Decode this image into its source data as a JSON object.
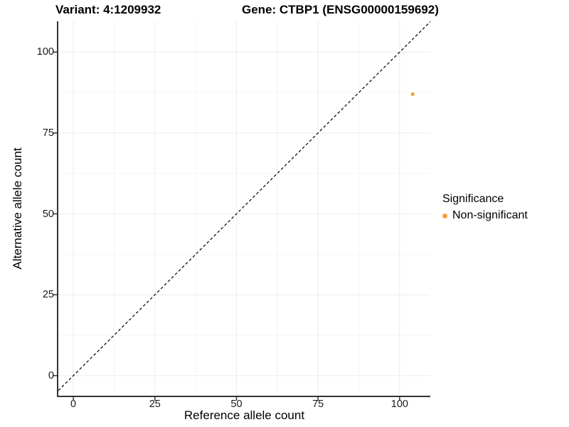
{
  "page": {
    "background": "#FFFFFF"
  },
  "titles": {
    "left": "Variant: 4:1209932",
    "right": "Gene: CTBP1 (ENSG00000159692)"
  },
  "chart_data": {
    "type": "scatter",
    "xlabel": "Reference allele count",
    "ylabel": "Alternative allele count",
    "xticks": [
      0,
      25,
      50,
      75,
      100
    ],
    "yticks": [
      0,
      25,
      50,
      75,
      100
    ],
    "xlim": [
      -4.6,
      109.4
    ],
    "ylim": [
      -6.2,
      109.5
    ],
    "grid": "major+minor",
    "panel_background": "#FFFFFF",
    "major_grid_color": "#EBEBEB",
    "minor_grid_color": "#F4F4F4",
    "axis_line_color": "#333333",
    "tick_label_color": "#1A1A1A",
    "identity_line": {
      "slope": 1,
      "intercept": 0,
      "linestyle": "dashed",
      "color": "#000000"
    },
    "series": [
      {
        "name": "Non-significant",
        "color": "#F6A13C",
        "marker": "circle",
        "points": [
          {
            "x": 104,
            "y": 87
          }
        ]
      }
    ],
    "legend": {
      "title": "Significance",
      "position": "right",
      "items": [
        {
          "label": "Non-significant",
          "color": "#F6A13C",
          "marker": "circle"
        }
      ]
    }
  }
}
